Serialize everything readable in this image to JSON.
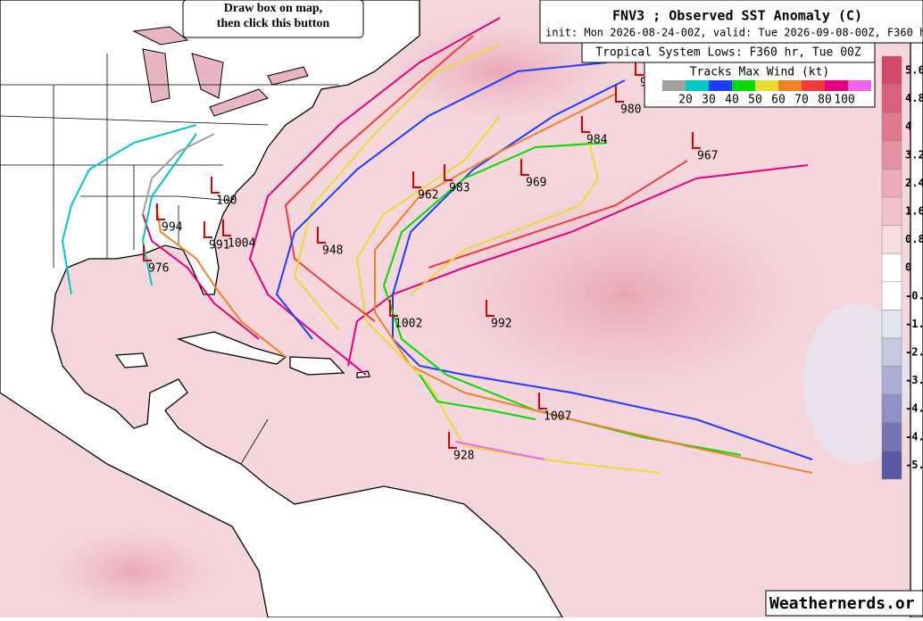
{
  "button": {
    "line1": "Draw box on map,",
    "line2": "then click this button"
  },
  "header": {
    "title": "FNV3 ; Observed SST Anomaly (C)",
    "subtitle": "init: Mon 2026-08-24-00Z, valid: Tue 2026-09-08-00Z, F360 h",
    "lows_title": "Tropical System Lows: F360 hr, Tue 00Z"
  },
  "legend": {
    "title": "Tracks Max Wind (kt)",
    "labels": [
      "20",
      "30",
      "40",
      "50",
      "60",
      "70",
      "80",
      "100"
    ]
  },
  "colorbar": {
    "labels": [
      "5.6",
      "4.8",
      "4",
      "3.2",
      "2.4",
      "1.6",
      "0.8",
      "0",
      "-0.",
      "-1.",
      "-2.",
      "-3.",
      "-4.",
      "-4.",
      "-5."
    ]
  },
  "lows": [
    "9",
    "980",
    "984",
    "967",
    "100",
    "994",
    "991",
    "1004",
    "976",
    "962",
    "983",
    "969",
    "948",
    "1002",
    "992",
    "1007",
    "928"
  ],
  "watermark": "Weathernerds.or"
}
